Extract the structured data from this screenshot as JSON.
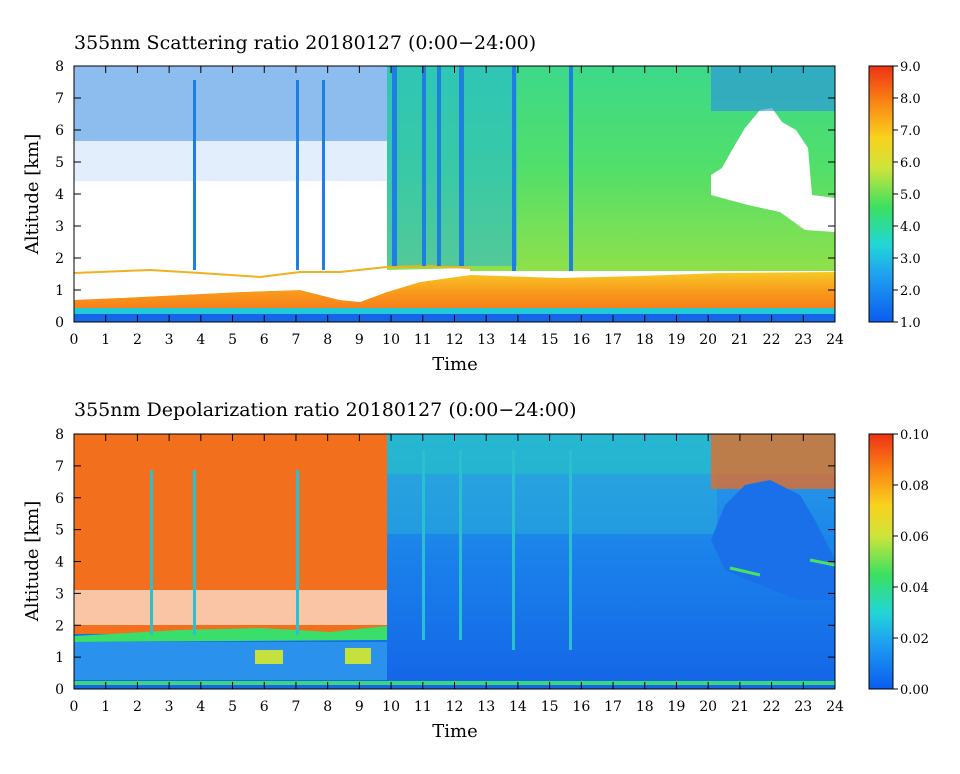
{
  "chart_data": [
    {
      "type": "heatmap",
      "title": "355nm Scattering ratio  20180127 (0:00−24:00)",
      "xlabel": "Time",
      "ylabel": "Altitude [km]",
      "xlim": [
        0,
        24
      ],
      "ylim": [
        0,
        8
      ],
      "xticks": [
        "0",
        "1",
        "2",
        "3",
        "4",
        "5",
        "6",
        "7",
        "8",
        "9",
        "10",
        "11",
        "12",
        "13",
        "14",
        "15",
        "16",
        "17",
        "18",
        "19",
        "20",
        "21",
        "22",
        "23",
        "24"
      ],
      "yticks": [
        "0",
        "1",
        "2",
        "3",
        "4",
        "5",
        "6",
        "7",
        "8"
      ],
      "colorbar": {
        "min": 1.0,
        "max": 9.0,
        "ticks": [
          "1.0",
          "2.0",
          "3.0",
          "4.0",
          "5.0",
          "6.0",
          "7.0",
          "8.0",
          "9.0"
        ]
      }
    },
    {
      "type": "heatmap",
      "title": "355nm Depolarization ratio  20180127 (0:00−24:00)",
      "xlabel": "Time",
      "ylabel": "Altitude [km]",
      "xlim": [
        0,
        24
      ],
      "ylim": [
        0,
        8
      ],
      "xticks": [
        "0",
        "1",
        "2",
        "3",
        "4",
        "5",
        "6",
        "7",
        "8",
        "9",
        "10",
        "11",
        "12",
        "13",
        "14",
        "15",
        "16",
        "17",
        "18",
        "19",
        "20",
        "21",
        "22",
        "23",
        "24"
      ],
      "yticks": [
        "0",
        "1",
        "2",
        "3",
        "4",
        "5",
        "6",
        "7",
        "8"
      ],
      "colorbar": {
        "min": 0.0,
        "max": 0.1,
        "ticks": [
          "0.00",
          "0.02",
          "0.04",
          "0.06",
          "0.08",
          "0.10"
        ]
      }
    }
  ]
}
